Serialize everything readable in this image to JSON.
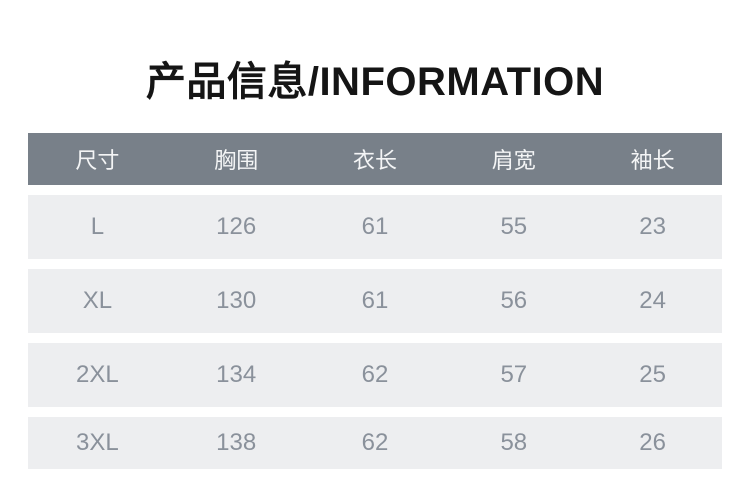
{
  "page": {
    "title": "产品信息/INFORMATION"
  },
  "chart_data": {
    "type": "table",
    "title": "产品信息/INFORMATION",
    "columns": [
      "尺寸",
      "胸围",
      "衣长",
      "肩宽",
      "袖长"
    ],
    "rows": [
      [
        "L",
        "126",
        "61",
        "55",
        "23"
      ],
      [
        "XL",
        "130",
        "61",
        "56",
        "24"
      ],
      [
        "2XL",
        "134",
        "62",
        "57",
        "25"
      ],
      [
        "3XL",
        "138",
        "62",
        "58",
        "26"
      ]
    ],
    "layout_hints": {
      "header_position": "top",
      "grid": "off",
      "row_striping": "uniform-light-rows-with-white-gaps"
    }
  },
  "colors": {
    "page_bg": "#ffffff",
    "title_text": "#151515",
    "header_bg": "#788089",
    "header_text": "#f4f5f6",
    "row_bg": "#edeef0",
    "row_text": "#8a919b"
  }
}
